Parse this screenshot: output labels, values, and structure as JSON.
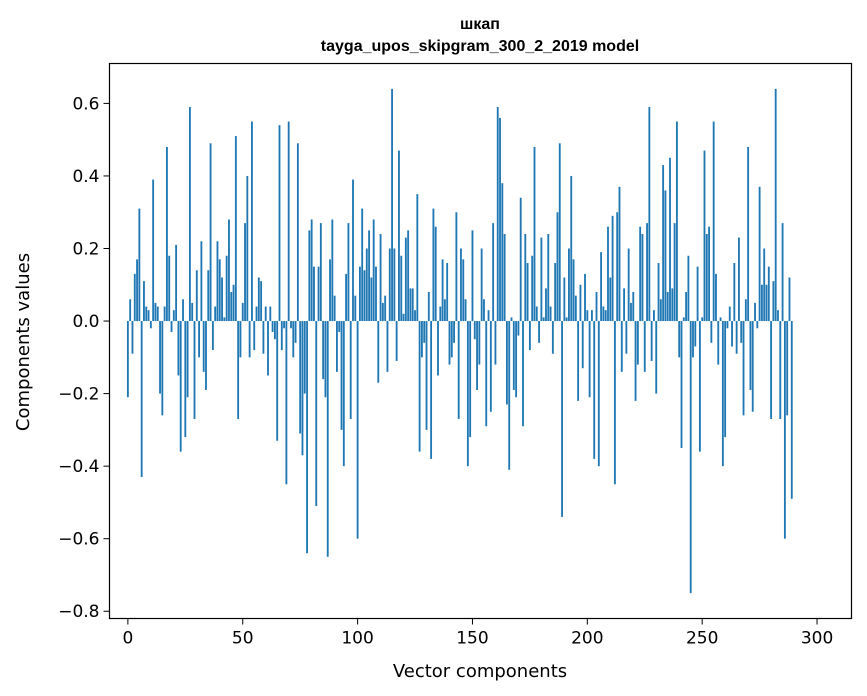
{
  "chart_data": {
    "type": "bar",
    "title": "шкап",
    "subtitle": "tayga_upos_skipgram_300_2_2019 model",
    "xlabel": "Vector components",
    "ylabel": "Components values",
    "xlim": [
      -8,
      315
    ],
    "ylim": [
      -0.82,
      0.71
    ],
    "xticks": [
      0,
      50,
      100,
      150,
      200,
      250,
      300
    ],
    "yticks": [
      -0.8,
      -0.6,
      -0.4,
      -0.2,
      0.0,
      0.2,
      0.4,
      0.6
    ],
    "xtick_labels": [
      "0",
      "50",
      "100",
      "150",
      "200",
      "250",
      "300"
    ],
    "ytick_labels": [
      "−0.8",
      "−0.6",
      "−0.4",
      "−0.2",
      "0.0",
      "0.2",
      "0.4",
      "0.6"
    ],
    "bar_color": "#1f77b4",
    "grid": false,
    "series": [
      {
        "name": "components",
        "values": [
          -0.21,
          0.06,
          -0.09,
          0.13,
          0.17,
          0.31,
          -0.43,
          0.11,
          0.04,
          0.03,
          -0.02,
          0.39,
          0.05,
          0.04,
          -0.2,
          -0.26,
          0.04,
          0.48,
          0.18,
          -0.03,
          0.03,
          0.21,
          -0.15,
          -0.36,
          0.06,
          -0.32,
          -0.21,
          0.59,
          0.05,
          -0.27,
          0.14,
          -0.1,
          0.22,
          -0.14,
          -0.19,
          0.14,
          0.49,
          -0.08,
          0.04,
          0.22,
          0.17,
          0.12,
          0.01,
          0.18,
          0.28,
          0.08,
          0.1,
          0.51,
          -0.27,
          -0.1,
          0.05,
          0.27,
          0.4,
          -0.1,
          0.55,
          -0.08,
          0.04,
          0.12,
          0.11,
          -0.09,
          0.04,
          -0.15,
          0.04,
          -0.03,
          -0.05,
          -0.33,
          0.54,
          -0.08,
          -0.02,
          -0.45,
          0.55,
          -0.02,
          -0.1,
          -0.06,
          0.49,
          -0.31,
          -0.37,
          -0.2,
          -0.64,
          0.25,
          0.28,
          0.15,
          -0.51,
          0.15,
          0.27,
          -0.16,
          -0.21,
          -0.65,
          0.17,
          0.28,
          0.07,
          -0.14,
          -0.03,
          -0.3,
          -0.4,
          0.13,
          0.27,
          -0.27,
          0.39,
          0.07,
          -0.6,
          0.15,
          0.31,
          0.14,
          0.2,
          0.25,
          0.12,
          0.28,
          0.15,
          -0.17,
          0.24,
          0.05,
          0.07,
          -0.14,
          0.2,
          0.64,
          0.2,
          -0.11,
          0.47,
          0.18,
          0.02,
          0.23,
          0.25,
          0.09,
          0.09,
          0.03,
          0.35,
          -0.36,
          -0.1,
          -0.06,
          -0.3,
          0.08,
          -0.38,
          0.31,
          0.26,
          -0.15,
          0.04,
          0.17,
          0.06,
          0.16,
          -0.12,
          -0.1,
          -0.06,
          0.3,
          -0.27,
          0.2,
          0.17,
          0.06,
          -0.4,
          -0.32,
          0.25,
          -0.05,
          -0.19,
          -0.12,
          0.2,
          0.06,
          -0.29,
          0.03,
          -0.25,
          0.27,
          -0.12,
          0.59,
          0.56,
          0.38,
          0.24,
          -0.23,
          -0.41,
          0.01,
          -0.19,
          -0.21,
          -0.04,
          0.34,
          -0.29,
          0.24,
          0.16,
          -0.08,
          0.18,
          0.48,
          0.04,
          -0.06,
          0.23,
          0.01,
          0.09,
          0.24,
          0.04,
          -0.09,
          0.16,
          0.3,
          0.49,
          -0.54,
          0.12,
          0.01,
          0.2,
          0.4,
          0.17,
          0.07,
          -0.22,
          0.1,
          -0.13,
          0.13,
          0.03,
          -0.21,
          0.03,
          -0.38,
          0.08,
          -0.4,
          0.19,
          0.04,
          0.03,
          0.26,
          0.12,
          0.29,
          -0.45,
          0.3,
          0.37,
          -0.14,
          0.09,
          -0.09,
          0.2,
          0.05,
          0.08,
          -0.22,
          -0.12,
          0.26,
          0.24,
          -0.14,
          0.27,
          0.59,
          -0.11,
          0.03,
          -0.2,
          0.16,
          0.06,
          0.43,
          0.36,
          0.08,
          0.45,
          0.09,
          0.27,
          0.55,
          -0.1,
          -0.35,
          0.01,
          0.08,
          0.18,
          -0.75,
          -0.1,
          -0.07,
          0.15,
          -0.36,
          0.01,
          0.47,
          0.24,
          0.26,
          -0.06,
          0.55,
          0.13,
          -0.12,
          0.01,
          -0.4,
          -0.32,
          -0.02,
          0.04,
          -0.07,
          0.16,
          -0.09,
          0.23,
          -0.06,
          -0.26,
          0.06,
          0.48,
          -0.19,
          -0.25,
          0.05,
          -0.02,
          0.37,
          0.1,
          0.2,
          0.1,
          0.15,
          -0.27,
          0.11,
          0.64,
          0.03,
          -0.27,
          0.27,
          -0.6,
          -0.26,
          0.12,
          -0.49
        ]
      }
    ]
  }
}
